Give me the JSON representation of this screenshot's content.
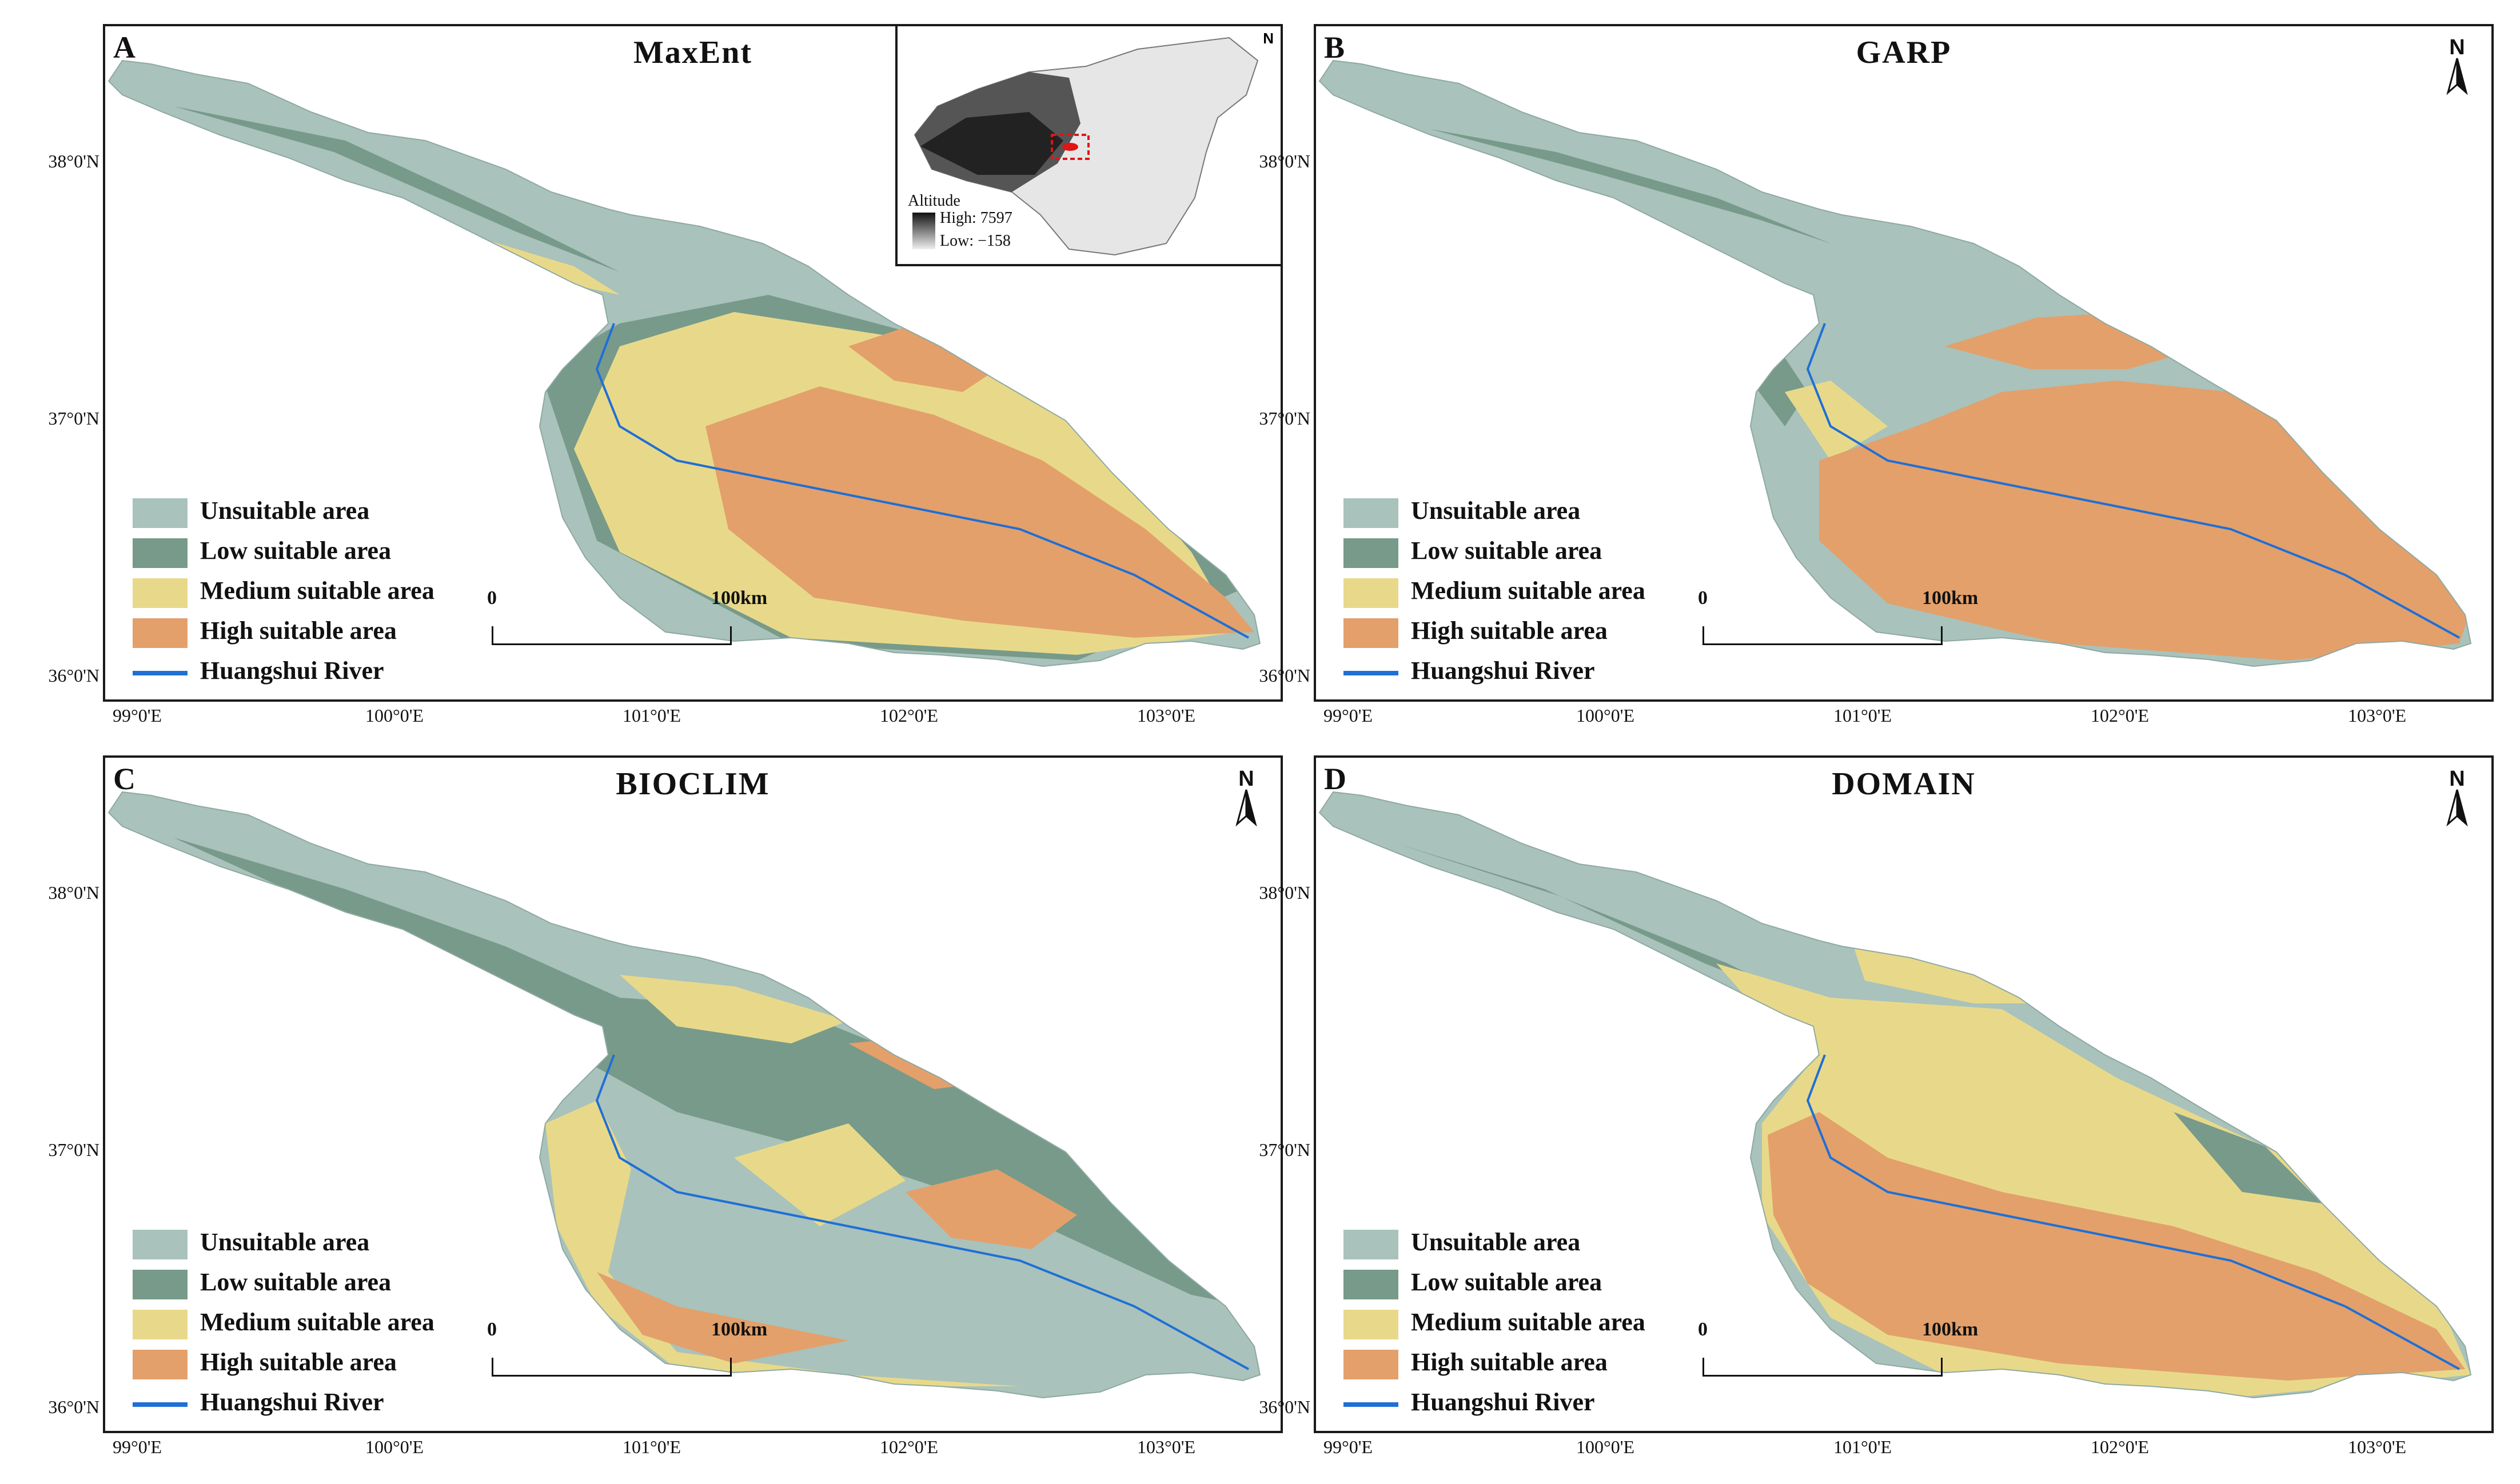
{
  "legend": {
    "items": [
      {
        "label": "Unsuitable area",
        "color": "#a9c2bb"
      },
      {
        "label": "Low suitable area",
        "color": "#779a8a"
      },
      {
        "label": "Medium suitable area",
        "color": "#e8d98a"
      },
      {
        "label": "High suitable area",
        "color": "#e3a06a"
      }
    ],
    "river_label": "Huangshui River",
    "river_color": "#1f6fd6"
  },
  "scale": {
    "zero": "0",
    "end": "100km"
  },
  "north_label": "N",
  "panels": [
    {
      "letter": "A",
      "title": "MaxEnt"
    },
    {
      "letter": "B",
      "title": "GARP"
    },
    {
      "letter": "C",
      "title": "BIOCLIM"
    },
    {
      "letter": "D",
      "title": "DOMAIN"
    }
  ],
  "lat_ticks": [
    "38°0'N",
    "37°0'N",
    "36°0'N"
  ],
  "lon_ticks": [
    "99°0'E",
    "100°0'E",
    "101°0'E",
    "102°0'E",
    "103°0'E"
  ],
  "inset": {
    "north": "N",
    "altitude_title": "Altitude",
    "high_label": "High: 7597",
    "low_label": "Low: −158"
  }
}
